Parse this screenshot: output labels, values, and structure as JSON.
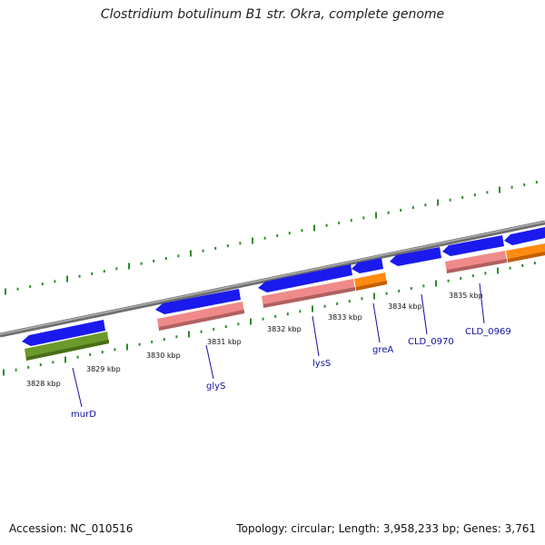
{
  "title": "Clostridium botulinum B1 str. Okra, complete genome",
  "footer": {
    "accession": "Accession: NC_010516",
    "summary": "Topology: circular; Length: 3,958,233 bp; Genes: 3,761"
  },
  "colors": {
    "backbone": "#8c8c8c",
    "ticks": "#2e8b2e",
    "forward_cds": "#1a1aee",
    "gene_pink": "#f08a8a",
    "gene_orange": "#ff8c10",
    "gene_green": "#6b9a2a",
    "label": "#1010a0"
  },
  "scale_labels": [
    "3828 kbp",
    "3829 kbp",
    "3830 kbp",
    "3831 kbp",
    "3832 kbp",
    "3833 kbp",
    "3834 kbp",
    "3835 kbp"
  ],
  "gene_labels": [
    "murD",
    "glyS",
    "lysS",
    "greA",
    "CLD_0970",
    "CLD_0969"
  ]
}
